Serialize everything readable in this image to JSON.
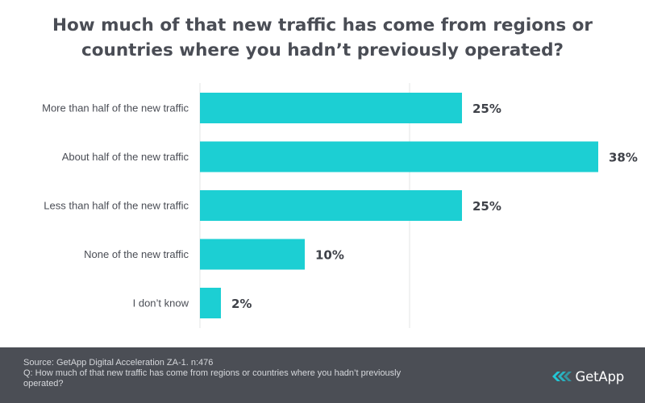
{
  "title_lines": [
    "How much of that new traffic has come from regions or",
    "countries where you hadn’t previously operated?"
  ],
  "chart_data": {
    "type": "bar",
    "orientation": "horizontal",
    "title": "How much of that new traffic has come from regions or countries where you hadn’t previously operated?",
    "categories": [
      "More than half of the new traffic",
      "About half of the new traffic",
      "Less than half of the new traffic",
      "None of the new traffic",
      "I don’t know"
    ],
    "values": [
      25,
      38,
      25,
      10,
      2
    ],
    "value_labels": [
      "25%",
      "38%",
      "25%",
      "10%",
      "2%"
    ],
    "xlim": [
      0,
      40
    ],
    "gridlines": [
      0,
      20
    ],
    "xlabel": "",
    "ylabel": "",
    "bar_color": "#1ccfd3",
    "grid_color": "#e3e4e6"
  },
  "footer": {
    "source": "Source: GetApp Digital Acceleration ZA-1. n:476",
    "question_lines": [
      "Q: How much of that new traffic has come from regions or countries where you hadn’t previously",
      "operated?"
    ],
    "background": "#4b4e55"
  },
  "brand": {
    "name": "GetApp",
    "icon": "getapp-logo-icon",
    "icon_color": "#22c7d6"
  }
}
